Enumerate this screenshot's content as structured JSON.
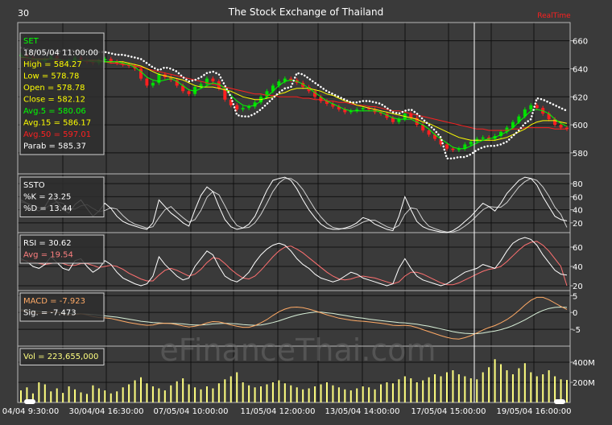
{
  "header": {
    "interval": "30",
    "title": "The Stock Exchange of Thailand",
    "realtime": "RealTime"
  },
  "watermark": "eFinanceThai.com",
  "colors": {
    "background": "#3a3a3a",
    "frame": "#b8b8b8",
    "grid": "#111111",
    "up": "#00e000",
    "down": "#ff2020",
    "avg5": "#00ff00",
    "avg15": "#ffff00",
    "avg50": "#ff2020",
    "parab": "#ffffff",
    "volume": "#ffff80",
    "label_white": "#ffffff",
    "label_rsi_avg": "#ff8080",
    "label_macd": "#ffaa66",
    "realtime": "#ff2020",
    "hilite": "#ffffff"
  },
  "price_panel": {
    "legend": [
      {
        "key": "set",
        "text": "SET",
        "color": "#00ff00"
      },
      {
        "key": "date",
        "text": "18/05/04 11:00:00",
        "color": "#ffffff"
      },
      {
        "key": "high",
        "text": "High  = 584.27",
        "color": "#ffff00"
      },
      {
        "key": "low",
        "text": "Low   = 578.78",
        "color": "#ffff00"
      },
      {
        "key": "open",
        "text": "Open = 578.78",
        "color": "#ffff00"
      },
      {
        "key": "close",
        "text": "Close = 582.12",
        "color": "#ffff00"
      },
      {
        "key": "avg5",
        "text": "Avg.5 = 580.06",
        "color": "#00ff00"
      },
      {
        "key": "avg15",
        "text": "Avg.15 = 586.17",
        "color": "#ffff00"
      },
      {
        "key": "avg50",
        "text": "Avg.50 = 597.01",
        "color": "#ff2020"
      },
      {
        "key": "parab",
        "text": "Parab = 585.37",
        "color": "#ffffff"
      }
    ],
    "y_ticks": [
      580,
      600,
      620,
      640,
      660
    ],
    "y_range": [
      565,
      673
    ]
  },
  "ssto_panel": {
    "legend": [
      {
        "key": "title",
        "text": "SSTO",
        "color": "#ffffff"
      },
      {
        "key": "k",
        "text": "%K = 23.25",
        "color": "#ffffff"
      },
      {
        "key": "d",
        "text": "%D = 13.44",
        "color": "#ffffff"
      }
    ],
    "y_ticks": [
      20,
      40,
      60,
      80
    ],
    "y_range": [
      5,
      95
    ]
  },
  "rsi_panel": {
    "legend": [
      {
        "key": "rsi",
        "text": "RSI = 30.62",
        "color": "#ffffff"
      },
      {
        "key": "avg",
        "text": "Avg = 19.54",
        "color": "#ff8080"
      }
    ],
    "y_ticks": [
      20,
      40,
      60
    ],
    "y_range": [
      15,
      75
    ]
  },
  "macd_panel": {
    "legend": [
      {
        "key": "macd",
        "text": "MACD = -7.923",
        "color": "#ffaa66"
      },
      {
        "key": "sig",
        "text": "Sig. = -7.473",
        "color": "#ffffff"
      }
    ],
    "y_ticks": [
      5,
      0,
      -5
    ],
    "y_range": [
      -10,
      6.5
    ]
  },
  "volume_panel": {
    "legend": [
      {
        "key": "vol",
        "text": "Vol = 223,655,000",
        "color": "#ffff80"
      }
    ],
    "y_ticks": [
      {
        "value": 200,
        "label": "200M"
      },
      {
        "value": 400,
        "label": "400M"
      }
    ],
    "y_range": [
      0,
      560
    ]
  },
  "x_axis": {
    "labels": [
      "04/04 9:30:00",
      "30/04/04 16:30:00",
      "07/05/04 10:00:00",
      "11/05/04 12:00:00",
      "13/05/04 14:00:00",
      "17/05/04 15:00:00",
      "19/05/04 16:00:00"
    ]
  },
  "chart_data": {
    "type": "line",
    "title": "The Stock Exchange of Thailand",
    "series_names": [
      "SET",
      "Avg.5",
      "Avg.15",
      "Avg.50",
      "Parab",
      "%K",
      "%D",
      "RSI",
      "Avg",
      "MACD",
      "Sig.",
      "Vol"
    ],
    "price_points": [
      650,
      648,
      646,
      645,
      647,
      649,
      646,
      645,
      646,
      648,
      646,
      645,
      644,
      646,
      647,
      645,
      644,
      643,
      642,
      640,
      633,
      628,
      630,
      636,
      634,
      632,
      628,
      624,
      622,
      627,
      629,
      633,
      631,
      626,
      618,
      614,
      611,
      612,
      613,
      616,
      620,
      624,
      628,
      631,
      633,
      632,
      630,
      627,
      624,
      620,
      617,
      615,
      613,
      611,
      609,
      610,
      611,
      612,
      611,
      609,
      608,
      605,
      602,
      604,
      608,
      605,
      600,
      596,
      593,
      590,
      586,
      583,
      582,
      583,
      586,
      588,
      590,
      591,
      590,
      592,
      595,
      598,
      602,
      606,
      611,
      614,
      612,
      608,
      604,
      600,
      598,
      597
    ],
    "avg5_points": [
      649,
      648,
      647,
      646,
      646,
      647,
      647,
      646,
      646,
      646,
      646,
      646,
      645,
      645,
      645,
      645,
      645,
      644,
      643,
      641,
      638,
      634,
      632,
      631,
      632,
      633,
      631,
      628,
      625,
      624,
      626,
      628,
      630,
      629,
      626,
      621,
      617,
      614,
      613,
      614,
      617,
      620,
      624,
      628,
      631,
      632,
      631,
      629,
      626,
      623,
      620,
      617,
      615,
      613,
      611,
      610,
      610,
      610,
      610,
      610,
      609,
      607,
      605,
      604,
      604,
      604,
      602,
      600,
      597,
      593,
      590,
      587,
      584,
      583,
      583,
      585,
      587,
      589,
      590,
      591,
      593,
      595,
      598,
      602,
      606,
      610,
      611,
      610,
      608,
      604,
      601,
      599
    ],
    "avg15_points": [
      648,
      648,
      647,
      647,
      647,
      647,
      647,
      646,
      646,
      646,
      646,
      646,
      646,
      646,
      645,
      645,
      645,
      645,
      644,
      643,
      642,
      640,
      638,
      636,
      635,
      634,
      633,
      632,
      630,
      628,
      627,
      627,
      627,
      626,
      625,
      624,
      622,
      620,
      619,
      618,
      618,
      619,
      620,
      622,
      623,
      625,
      626,
      626,
      626,
      625,
      624,
      622,
      621,
      619,
      617,
      616,
      614,
      613,
      612,
      611,
      610,
      609,
      608,
      607,
      606,
      605,
      604,
      602,
      601,
      599,
      597,
      595,
      593,
      591,
      590,
      589,
      589,
      589,
      589,
      589,
      590,
      591,
      593,
      595,
      597,
      600,
      602,
      603,
      603,
      603,
      602,
      601
    ],
    "avg50_points": [
      647,
      647,
      647,
      647,
      647,
      647,
      646,
      646,
      646,
      646,
      646,
      645,
      645,
      645,
      645,
      644,
      644,
      643,
      643,
      642,
      641,
      640,
      639,
      638,
      637,
      636,
      635,
      634,
      633,
      632,
      631,
      630,
      629,
      628,
      627,
      626,
      625,
      624,
      623,
      622,
      622,
      621,
      621,
      620,
      620,
      620,
      620,
      619,
      619,
      618,
      618,
      617,
      617,
      616,
      616,
      615,
      614,
      614,
      613,
      613,
      612,
      611,
      610,
      610,
      609,
      608,
      607,
      606,
      605,
      604,
      603,
      602,
      601,
      600,
      599,
      598,
      597,
      597,
      596,
      596,
      596,
      596,
      597,
      597,
      598,
      598,
      598,
      598,
      598,
      597,
      597,
      597
    ],
    "parab_points": [
      655,
      654,
      653,
      652,
      651,
      651,
      652,
      653,
      653,
      653,
      652,
      652,
      652,
      652,
      652,
      651,
      650,
      650,
      649,
      648,
      647,
      644,
      641,
      639,
      641,
      640,
      638,
      634,
      631,
      632,
      634,
      637,
      638,
      636,
      628,
      620,
      607,
      606,
      606,
      608,
      611,
      615,
      619,
      623,
      626,
      627,
      637,
      636,
      633,
      630,
      627,
      624,
      622,
      620,
      618,
      616,
      616,
      617,
      617,
      616,
      615,
      612,
      609,
      608,
      610,
      611,
      608,
      604,
      600,
      596,
      591,
      576,
      576,
      577,
      577,
      579,
      582,
      584,
      585,
      585,
      586,
      588,
      592,
      596,
      601,
      604,
      619,
      618,
      616,
      614,
      612,
      610
    ],
    "k_points": [
      55,
      50,
      42,
      38,
      45,
      60,
      52,
      40,
      35,
      48,
      55,
      42,
      30,
      38,
      50,
      42,
      30,
      22,
      18,
      15,
      12,
      10,
      20,
      55,
      45,
      35,
      28,
      20,
      15,
      40,
      62,
      75,
      68,
      45,
      25,
      14,
      10,
      12,
      18,
      30,
      50,
      70,
      85,
      88,
      90,
      85,
      72,
      55,
      40,
      28,
      18,
      12,
      10,
      10,
      12,
      15,
      20,
      28,
      25,
      18,
      14,
      10,
      8,
      30,
      60,
      40,
      22,
      14,
      10,
      8,
      6,
      5,
      8,
      14,
      22,
      30,
      40,
      50,
      45,
      38,
      50,
      65,
      75,
      85,
      90,
      88,
      78,
      60,
      45,
      30,
      25,
      23
    ],
    "d_points": [
      52,
      50,
      47,
      43,
      42,
      48,
      52,
      50,
      42,
      41,
      46,
      48,
      42,
      37,
      39,
      43,
      41,
      31,
      23,
      18,
      15,
      12,
      14,
      28,
      40,
      45,
      36,
      28,
      21,
      25,
      39,
      59,
      68,
      63,
      46,
      28,
      16,
      12,
      13,
      20,
      33,
      50,
      68,
      81,
      88,
      88,
      82,
      71,
      56,
      41,
      29,
      19,
      13,
      11,
      11,
      12,
      16,
      21,
      24,
      24,
      19,
      14,
      11,
      16,
      33,
      43,
      41,
      25,
      15,
      11,
      8,
      6,
      6,
      9,
      15,
      22,
      31,
      40,
      45,
      44,
      44,
      51,
      63,
      75,
      83,
      88,
      85,
      75,
      61,
      44,
      33,
      13
    ],
    "rsi_points": [
      48,
      45,
      40,
      38,
      42,
      50,
      44,
      38,
      36,
      46,
      48,
      40,
      34,
      38,
      46,
      42,
      34,
      28,
      25,
      22,
      20,
      22,
      30,
      50,
      42,
      36,
      30,
      26,
      28,
      40,
      48,
      56,
      52,
      40,
      30,
      26,
      24,
      28,
      34,
      44,
      52,
      58,
      62,
      64,
      62,
      56,
      48,
      42,
      38,
      32,
      28,
      26,
      24,
      26,
      30,
      34,
      32,
      28,
      26,
      24,
      22,
      20,
      22,
      38,
      48,
      38,
      30,
      26,
      24,
      22,
      20,
      22,
      26,
      30,
      34,
      36,
      38,
      42,
      40,
      38,
      46,
      56,
      64,
      68,
      70,
      68,
      62,
      52,
      44,
      36,
      32,
      31
    ],
    "rsiavg_points": [
      46,
      46,
      45,
      43,
      42,
      43,
      44,
      43,
      41,
      41,
      43,
      43,
      41,
      39,
      40,
      41,
      40,
      37,
      33,
      30,
      27,
      25,
      25,
      31,
      36,
      38,
      36,
      33,
      30,
      32,
      37,
      44,
      49,
      48,
      43,
      37,
      32,
      28,
      27,
      30,
      36,
      43,
      50,
      56,
      60,
      61,
      58,
      54,
      49,
      44,
      39,
      34,
      30,
      27,
      26,
      27,
      29,
      30,
      29,
      28,
      26,
      24,
      22,
      24,
      30,
      34,
      34,
      32,
      29,
      26,
      23,
      21,
      21,
      23,
      26,
      29,
      32,
      35,
      37,
      38,
      40,
      45,
      51,
      57,
      62,
      65,
      66,
      62,
      56,
      48,
      40,
      20
    ],
    "macd_points": [
      0.5,
      0.3,
      0,
      -0.3,
      -0.2,
      0.2,
      0,
      -0.5,
      -0.8,
      -0.6,
      -0.4,
      -0.7,
      -1.2,
      -1.5,
      -1.6,
      -1.8,
      -2.2,
      -2.6,
      -3,
      -3.3,
      -3.6,
      -3.8,
      -3.7,
      -3.3,
      -3.2,
      -3.3,
      -3.6,
      -4,
      -4.3,
      -4.1,
      -3.7,
      -3.1,
      -2.7,
      -2.8,
      -3.2,
      -3.7,
      -4.1,
      -4.4,
      -4.4,
      -3.9,
      -3.1,
      -2.1,
      -0.9,
      0.2,
      1,
      1.5,
      1.6,
      1.4,
      1,
      0.5,
      -0.1,
      -0.7,
      -1.2,
      -1.7,
      -2,
      -2.3,
      -2.5,
      -2.6,
      -2.8,
      -3,
      -3.2,
      -3.5,
      -3.8,
      -3.9,
      -3.8,
      -4,
      -4.5,
      -5.1,
      -5.7,
      -6.3,
      -6.9,
      -7.4,
      -7.8,
      -7.9,
      -7.5,
      -6.9,
      -6.1,
      -5.2,
      -4.5,
      -3.9,
      -3.1,
      -2.1,
      -0.9,
      0.6,
      2.2,
      3.6,
      4.5,
      4.5,
      3.8,
      2.8,
      1.8,
      0.9
    ],
    "sig_points": [
      0.8,
      0.7,
      0.5,
      0.3,
      0.1,
      0.1,
      0.1,
      -0.1,
      -0.3,
      -0.4,
      -0.4,
      -0.5,
      -0.6,
      -0.8,
      -1,
      -1.2,
      -1.4,
      -1.7,
      -2,
      -2.3,
      -2.6,
      -2.8,
      -3,
      -3.1,
      -3.2,
      -3.2,
      -3.3,
      -3.4,
      -3.6,
      -3.7,
      -3.7,
      -3.6,
      -3.4,
      -3.3,
      -3.2,
      -3.3,
      -3.4,
      -3.6,
      -3.7,
      -3.8,
      -3.7,
      -3.4,
      -3,
      -2.5,
      -1.9,
      -1.3,
      -0.8,
      -0.4,
      -0.1,
      0.1,
      0.1,
      -0.1,
      -0.3,
      -0.6,
      -0.9,
      -1.2,
      -1.5,
      -1.7,
      -2,
      -2.2,
      -2.4,
      -2.6,
      -2.8,
      -3,
      -3.1,
      -3.3,
      -3.5,
      -3.8,
      -4.1,
      -4.5,
      -4.9,
      -5.3,
      -5.7,
      -6,
      -6.2,
      -6.3,
      -6.3,
      -6.1,
      -5.8,
      -5.5,
      -5.1,
      -4.6,
      -3.9,
      -3.1,
      -2.2,
      -1.2,
      -0.2,
      0.6,
      1.2,
      1.5,
      1.6,
      1.5
    ],
    "volume_points": [
      120,
      150,
      90,
      200,
      180,
      110,
      140,
      95,
      160,
      130,
      100,
      85,
      170,
      140,
      120,
      90,
      110,
      150,
      180,
      220,
      250,
      190,
      160,
      140,
      120,
      170,
      210,
      240,
      180,
      150,
      130,
      160,
      140,
      190,
      230,
      260,
      300,
      200,
      170,
      150,
      160,
      180,
      200,
      220,
      190,
      170,
      150,
      130,
      140,
      160,
      180,
      200,
      170,
      150,
      130,
      120,
      140,
      160,
      150,
      130,
      180,
      200,
      190,
      230,
      260,
      240,
      200,
      220,
      250,
      280,
      260,
      300,
      320,
      280,
      260,
      240,
      230,
      300,
      350,
      430,
      380,
      320,
      280,
      340,
      390,
      300,
      260,
      280,
      320,
      260,
      230,
      224
    ]
  }
}
